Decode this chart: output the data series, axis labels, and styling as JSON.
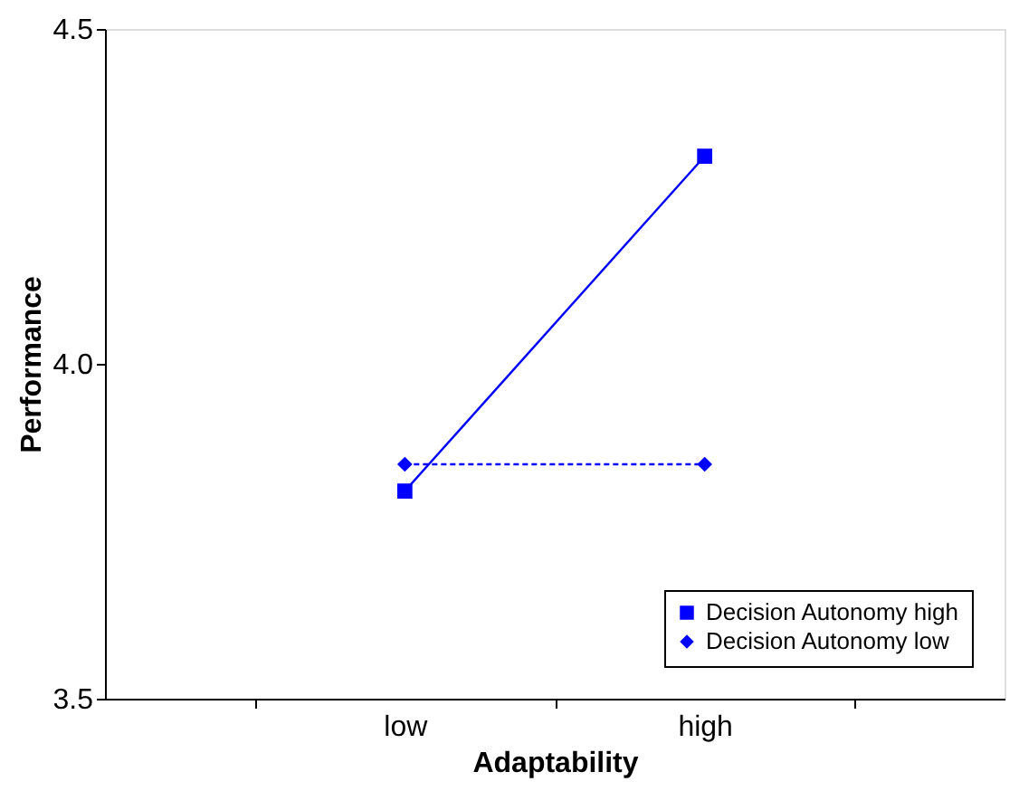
{
  "chart_data": {
    "type": "line",
    "xlabel": "Adaptability",
    "ylabel": "Performance",
    "categories": [
      "low",
      "high"
    ],
    "series": [
      {
        "name": "Decision Autonomy high",
        "color": "#0000ff",
        "values": [
          3.81,
          4.31
        ],
        "marker": "square",
        "line_style": "solid"
      },
      {
        "name": "Decision Autonomy low",
        "color": "#0000ff",
        "values": [
          3.85,
          3.85
        ],
        "marker": "diamond",
        "line_style": "dashed"
      }
    ],
    "ylim": [
      3.5,
      4.5
    ],
    "yticks": [
      {
        "value": 3.5,
        "label": "3.5"
      },
      {
        "value": 4.0,
        "label": "4.0"
      },
      {
        "value": 4.5,
        "label": "4.5"
      }
    ],
    "grid": false,
    "legend": "bottom right"
  }
}
